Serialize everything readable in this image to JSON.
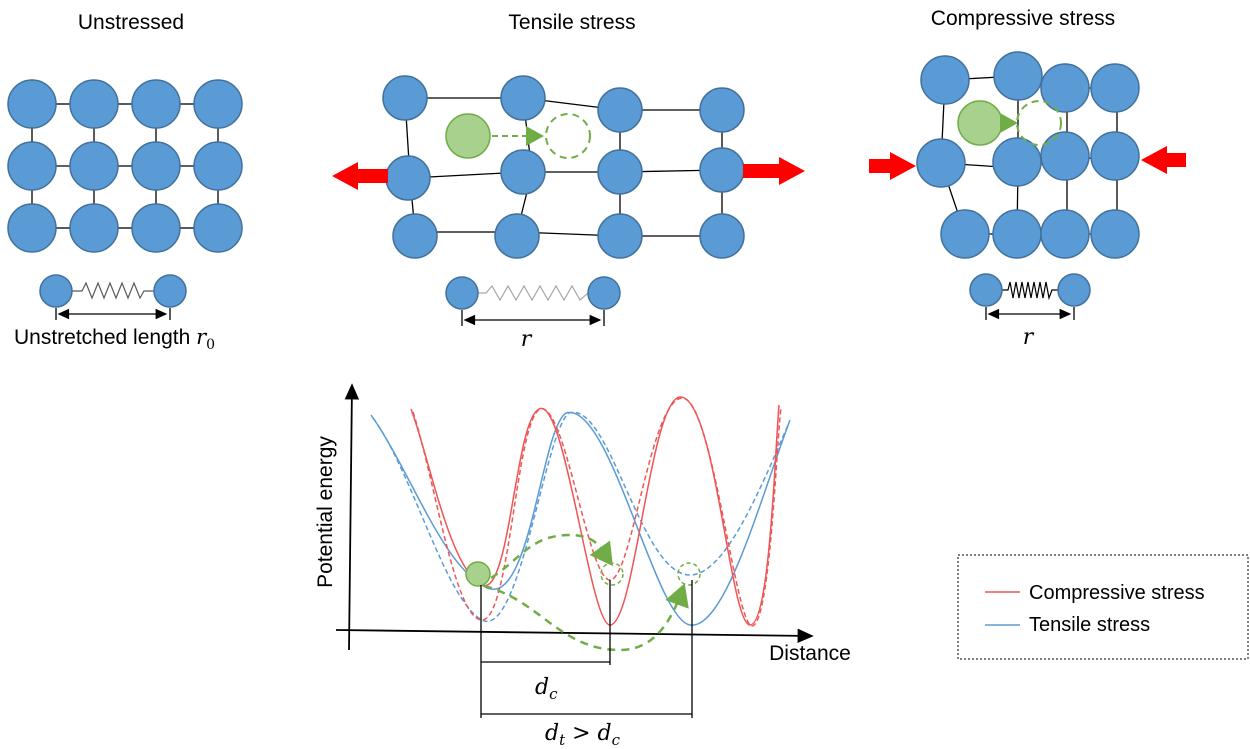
{
  "panels": {
    "unstressed": {
      "title": "Unstressed",
      "spring_label": "Unstretched length",
      "spring_symbol": "r",
      "spring_subscript": "0"
    },
    "tensile": {
      "title": "Tensile stress",
      "spring_symbol": "r"
    },
    "compressive": {
      "title": "Compressive stress",
      "spring_symbol": "r"
    }
  },
  "plot": {
    "ylabel": "Potential energy",
    "xlabel": "Distance",
    "dc_label": "d",
    "dc_sub": "c",
    "dt_label_main": "d",
    "dt_sub": "t",
    "dt_cmp": " > d",
    "dt_sub2": "c"
  },
  "legend": {
    "items": [
      {
        "label": "Compressive stress",
        "color": "#f05454"
      },
      {
        "label": "Tensile stress",
        "color": "#5b9bd5"
      }
    ]
  },
  "colors": {
    "atom": "#5b9bd5",
    "interstitial": "#a9d18e",
    "arrow": "#ff0000",
    "path": "#70ad47"
  }
}
